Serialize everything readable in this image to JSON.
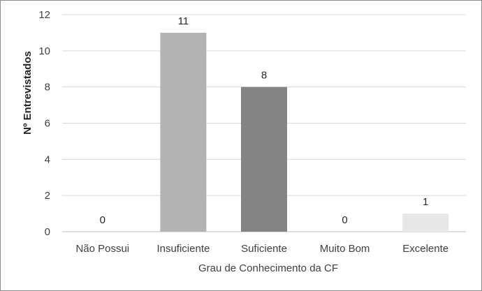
{
  "chart_data": {
    "type": "bar",
    "categories": [
      "Não Possui",
      "Insuficiente",
      "Suficiente",
      "Muito Bom",
      "Excelente"
    ],
    "values": [
      0,
      11,
      8,
      0,
      1
    ],
    "data_labels": [
      "0",
      "11",
      "8",
      "0",
      "1"
    ],
    "bar_colors": [
      "#d9d9d9",
      "#b3b3b3",
      "#848484",
      "#d9d9d9",
      "#e7e7e7"
    ],
    "xlabel": "Grau de Conhecimento da CF",
    "ylabel": "Nº Entrevistados",
    "ylim": [
      0,
      12
    ],
    "yticks": [
      0,
      2,
      4,
      6,
      8,
      10,
      12
    ],
    "grid": true,
    "legend": "none"
  }
}
